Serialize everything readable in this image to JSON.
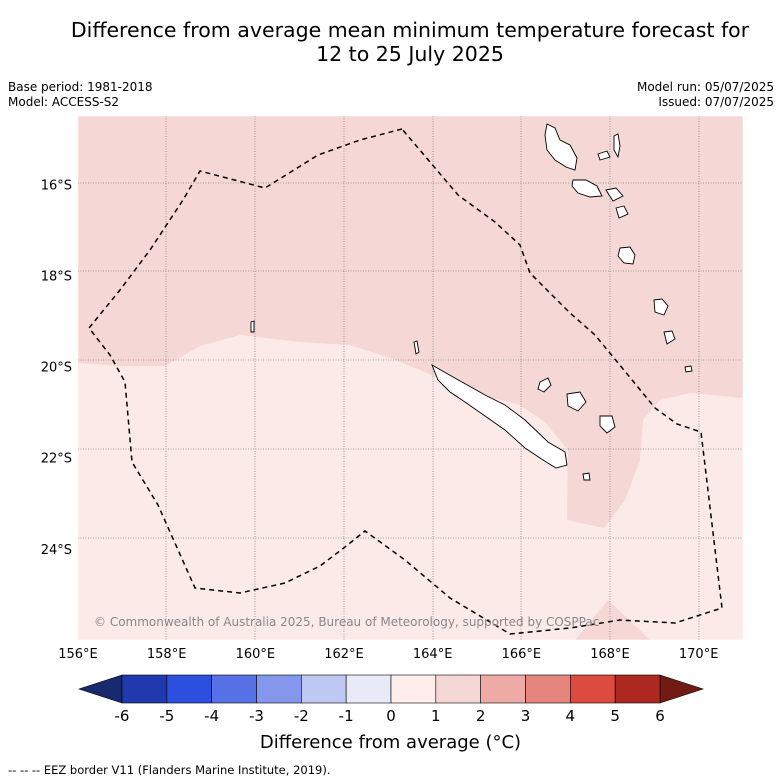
{
  "title": {
    "line1": "Difference from average mean minimum temperature forecast for",
    "line2": "12 to 25 July 2025"
  },
  "meta": {
    "base_period": "Base period: 1981-2018",
    "model": "Model: ACCESS-S2",
    "model_run": "Model run: 05/07/2025",
    "issued": "Issued: 07/07/2025"
  },
  "map": {
    "lon_range": [
      156,
      171
    ],
    "lat_range": [
      -26.0,
      -14.5
    ],
    "lat_ticks": [
      {
        "value": -16,
        "label": "16°S"
      },
      {
        "value": -18,
        "label": "18°S"
      },
      {
        "value": -20,
        "label": "20°S"
      },
      {
        "value": -22,
        "label": "22°S"
      },
      {
        "value": -24,
        "label": "24°S"
      }
    ],
    "lon_ticks": [
      {
        "value": 156,
        "label": "156°E"
      },
      {
        "value": 158,
        "label": "158°E"
      },
      {
        "value": 160,
        "label": "160°E"
      },
      {
        "value": 162,
        "label": "162°E"
      },
      {
        "value": 164,
        "label": "164°E"
      },
      {
        "value": 166,
        "label": "166°E"
      },
      {
        "value": 168,
        "label": "168°E"
      },
      {
        "value": 170,
        "label": "170°E"
      }
    ],
    "copyright": "© Commonwealth of Australia 2025, Bureau of Meteorology, supported by COSPPac",
    "regions": [
      {
        "category": "1 to 2",
        "color": "#f5d7d5"
      },
      {
        "category": "0 to 1",
        "color": "#fbeae8"
      }
    ]
  },
  "colorbar": {
    "labels": [
      "-6",
      "-5",
      "-4",
      "-3",
      "-2",
      "-1",
      "0",
      "1",
      "2",
      "3",
      "4",
      "5",
      "6"
    ],
    "colors": [
      "#2039ae",
      "#2d4fe0",
      "#5771e6",
      "#8497ed",
      "#bfc7f3",
      "#e7ebf8",
      "#fdedeb",
      "#f5d7d5",
      "#eeaaa5",
      "#e5857d",
      "#dd4a3e",
      "#ac2820"
    ],
    "low_extend_color": "#19296d",
    "high_extend_color": "#721b15",
    "label": "Difference from average (°C)"
  },
  "footnote": "--  --  -- EEZ border V11 (Flanders Marine Institute, 2019)."
}
